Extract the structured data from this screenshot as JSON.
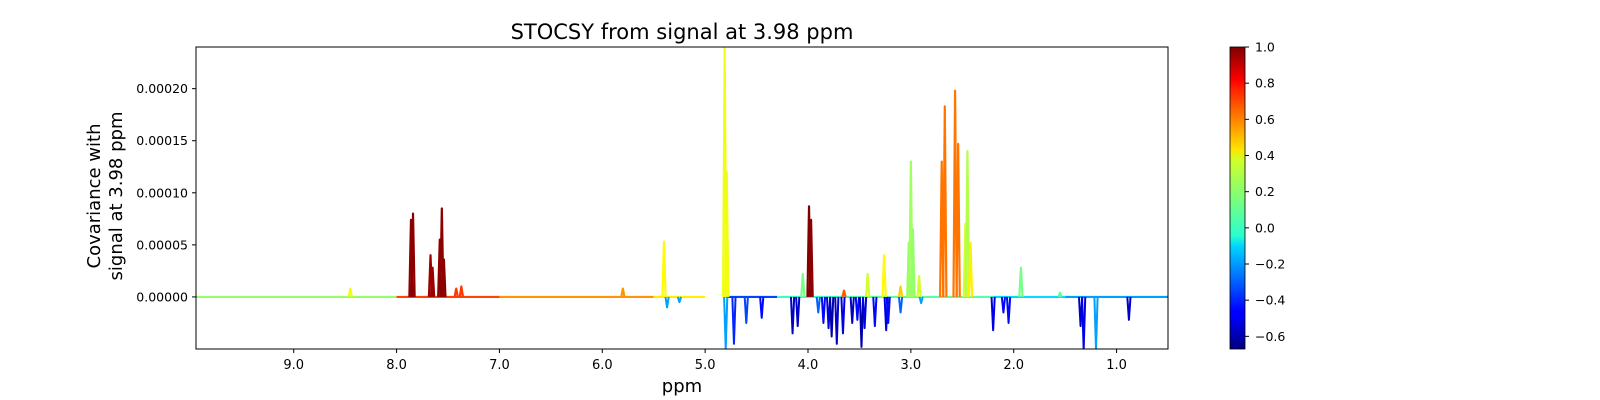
{
  "chart_data": {
    "type": "line",
    "title": "STOCSY from signal at 3.98 ppm",
    "xlabel": "ppm",
    "ylabel_lines": [
      "Covariance with",
      "signal at 3.98 ppm"
    ],
    "xlim": [
      9.95,
      0.5
    ],
    "ylim": [
      -5e-05,
      0.00024
    ],
    "x_axis_inverted": true,
    "xticks": [
      9.0,
      8.0,
      7.0,
      6.0,
      5.0,
      4.0,
      3.0,
      2.0,
      1.0
    ],
    "xtick_labels": [
      "9.0",
      "8.0",
      "7.0",
      "6.0",
      "5.0",
      "4.0",
      "3.0",
      "2.0",
      "1.0"
    ],
    "yticks": [
      0.0,
      5e-05,
      0.0001,
      0.00015,
      0.0002
    ],
    "ytick_labels": [
      "0.00000",
      "0.00005",
      "0.00010",
      "0.00015",
      "0.00020"
    ],
    "grid": false,
    "colormap": "jet",
    "colorbar": {
      "range": [
        -0.67,
        1.0
      ],
      "ticks": [
        1.0,
        0.8,
        0.6,
        0.4,
        0.2,
        0.0,
        -0.2,
        -0.4,
        -0.6
      ],
      "tick_labels": [
        "1.0",
        "0.8",
        "0.6",
        "0.4",
        "0.2",
        "0.0",
        "−0.2",
        "−0.4",
        "−0.6"
      ]
    },
    "baseline_segments": [
      {
        "x0": 9.95,
        "x1": 8.0,
        "corr": 0.2
      },
      {
        "x0": 8.0,
        "x1": 7.0,
        "corr": 0.68
      },
      {
        "x0": 7.0,
        "x1": 5.5,
        "corr": 0.55
      },
      {
        "x0": 5.5,
        "x1": 5.0,
        "corr": 0.4
      },
      {
        "x0": 4.8,
        "x1": 4.3,
        "corr": -0.35
      },
      {
        "x0": 4.3,
        "x1": 3.6,
        "corr": 0.05
      },
      {
        "x0": 3.6,
        "x1": 2.2,
        "corr": 0.1
      },
      {
        "x0": 2.2,
        "x1": 1.5,
        "corr": -0.1
      },
      {
        "x0": 1.5,
        "x1": 0.5,
        "corr": -0.2
      }
    ],
    "peaks": [
      {
        "x": 8.45,
        "y": 8e-06,
        "corr": 0.35
      },
      {
        "x": 7.86,
        "y": 7.4e-05,
        "corr": 0.98
      },
      {
        "x": 7.84,
        "y": 8e-05,
        "corr": 0.98
      },
      {
        "x": 7.67,
        "y": 4e-05,
        "corr": 0.95
      },
      {
        "x": 7.65,
        "y": 2.8e-05,
        "corr": 0.95
      },
      {
        "x": 7.58,
        "y": 5.5e-05,
        "corr": 0.98
      },
      {
        "x": 7.56,
        "y": 8.5e-05,
        "corr": 0.98
      },
      {
        "x": 7.54,
        "y": 3.6e-05,
        "corr": 0.98
      },
      {
        "x": 7.42,
        "y": 8e-06,
        "corr": 0.7
      },
      {
        "x": 7.37,
        "y": 1e-05,
        "corr": 0.7
      },
      {
        "x": 5.8,
        "y": 8e-06,
        "corr": 0.55
      },
      {
        "x": 5.4,
        "y": 5.3e-05,
        "corr": 0.38
      },
      {
        "x": 4.81,
        "y": 0.00024,
        "corr": 0.35
      },
      {
        "x": 4.79,
        "y": 0.00012,
        "corr": 0.35
      },
      {
        "x": 4.05,
        "y": 2.2e-05,
        "corr": 0.15
      },
      {
        "x": 3.99,
        "y": 8.7e-05,
        "corr": 1.0
      },
      {
        "x": 3.97,
        "y": 7.4e-05,
        "corr": 0.98
      },
      {
        "x": 3.65,
        "y": 6e-06,
        "corr": 0.65
      },
      {
        "x": 3.42,
        "y": 2.2e-05,
        "corr": 0.3
      },
      {
        "x": 3.26,
        "y": 4e-05,
        "corr": 0.38
      },
      {
        "x": 3.1,
        "y": 1e-05,
        "corr": 0.45
      },
      {
        "x": 3.02,
        "y": 5.2e-05,
        "corr": 0.2
      },
      {
        "x": 3.0,
        "y": 0.00013,
        "corr": 0.22
      },
      {
        "x": 2.98,
        "y": 6.5e-05,
        "corr": 0.2
      },
      {
        "x": 2.92,
        "y": 2e-05,
        "corr": 0.3
      },
      {
        "x": 2.7,
        "y": 0.00013,
        "corr": 0.6
      },
      {
        "x": 2.67,
        "y": 0.000183,
        "corr": 0.6
      },
      {
        "x": 2.57,
        "y": 0.000198,
        "corr": 0.6
      },
      {
        "x": 2.54,
        "y": 0.000147,
        "corr": 0.6
      },
      {
        "x": 2.47,
        "y": 7e-05,
        "corr": 0.3
      },
      {
        "x": 2.45,
        "y": 0.00014,
        "corr": 0.25
      },
      {
        "x": 2.42,
        "y": 5.2e-05,
        "corr": 0.4
      },
      {
        "x": 1.93,
        "y": 2.8e-05,
        "corr": 0.15
      },
      {
        "x": 1.55,
        "y": 4e-06,
        "corr": 0.1
      }
    ],
    "neg_peaks": [
      {
        "x": 5.37,
        "y": -1e-05,
        "corr": -0.2
      },
      {
        "x": 5.25,
        "y": -5e-06,
        "corr": -0.2
      },
      {
        "x": 4.8,
        "y": -5e-05,
        "corr": -0.2
      },
      {
        "x": 4.72,
        "y": -4.5e-05,
        "corr": -0.4
      },
      {
        "x": 4.6,
        "y": -2.5e-05,
        "corr": -0.35
      },
      {
        "x": 4.45,
        "y": -2e-05,
        "corr": -0.45
      },
      {
        "x": 4.15,
        "y": -3.5e-05,
        "corr": -0.55
      },
      {
        "x": 4.1,
        "y": -2.8e-05,
        "corr": -0.55
      },
      {
        "x": 3.9,
        "y": -1.5e-05,
        "corr": -0.3
      },
      {
        "x": 3.85,
        "y": -2.5e-05,
        "corr": -0.45
      },
      {
        "x": 3.8,
        "y": -3e-05,
        "corr": -0.5
      },
      {
        "x": 3.77,
        "y": -3.8e-05,
        "corr": -0.6
      },
      {
        "x": 3.72,
        "y": -4.5e-05,
        "corr": -0.55
      },
      {
        "x": 3.66,
        "y": -3.5e-05,
        "corr": -0.5
      },
      {
        "x": 3.57,
        "y": -2.5e-05,
        "corr": -0.55
      },
      {
        "x": 3.52,
        "y": -2.2e-05,
        "corr": -0.45
      },
      {
        "x": 3.48,
        "y": -4.8e-05,
        "corr": -0.6
      },
      {
        "x": 3.45,
        "y": -3e-05,
        "corr": -0.5
      },
      {
        "x": 3.35,
        "y": -2.8e-05,
        "corr": -0.45
      },
      {
        "x": 3.24,
        "y": -3.2e-05,
        "corr": -0.5
      },
      {
        "x": 3.22,
        "y": -2.5e-05,
        "corr": -0.45
      },
      {
        "x": 3.1,
        "y": -1.5e-05,
        "corr": -0.3
      },
      {
        "x": 2.9,
        "y": -6e-06,
        "corr": -0.2
      },
      {
        "x": 2.2,
        "y": -3.2e-05,
        "corr": -0.5
      },
      {
        "x": 2.1,
        "y": -1.5e-05,
        "corr": -0.45
      },
      {
        "x": 2.05,
        "y": -2.5e-05,
        "corr": -0.45
      },
      {
        "x": 1.35,
        "y": -2.8e-05,
        "corr": -0.55
      },
      {
        "x": 1.32,
        "y": -5e-05,
        "corr": -0.5
      },
      {
        "x": 1.2,
        "y": -5e-05,
        "corr": -0.2
      },
      {
        "x": 0.88,
        "y": -2.2e-05,
        "corr": -0.55
      }
    ]
  }
}
